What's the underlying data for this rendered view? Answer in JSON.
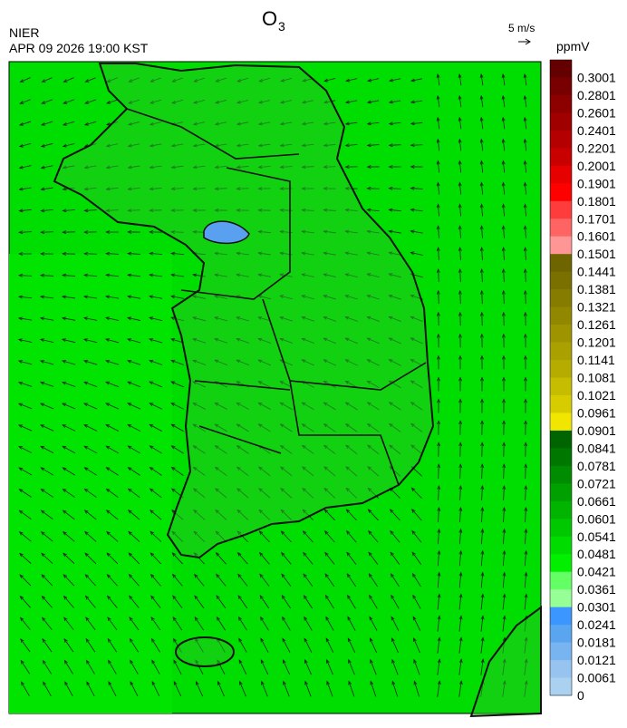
{
  "header": {
    "title": "O",
    "title_subscript": "3",
    "agency": "NIER",
    "timestamp": "APR 09 2026 19:00 KST",
    "wind_scale": "5 m/s"
  },
  "colorbar": {
    "unit": "ppmV",
    "labels": [
      "0.3001",
      "0.2801",
      "0.2601",
      "0.2401",
      "0.2201",
      "0.2001",
      "0.1901",
      "0.1801",
      "0.1701",
      "0.1601",
      "0.1501",
      "0.1441",
      "0.1381",
      "0.1321",
      "0.1261",
      "0.1201",
      "0.1141",
      "0.1081",
      "0.1021",
      "0.0961",
      "0.0901",
      "0.0841",
      "0.0781",
      "0.0721",
      "0.0661",
      "0.0601",
      "0.0541",
      "0.0481",
      "0.0421",
      "0.0361",
      "0.0301",
      "0.0241",
      "0.0181",
      "0.0121",
      "0.0061",
      "0"
    ],
    "colors": [
      "#640000",
      "#780000",
      "#8c0000",
      "#a00000",
      "#b40000",
      "#c80000",
      "#e60000",
      "#ff0000",
      "#ff3c3c",
      "#ff6464",
      "#ff9696",
      "#6e6400",
      "#7a7000",
      "#867c00",
      "#928800",
      "#9e9400",
      "#aaa000",
      "#b6ac00",
      "#c6bc00",
      "#d6cc00",
      "#f0e600",
      "#006400",
      "#007800",
      "#008c00",
      "#00a000",
      "#00b400",
      "#00c800",
      "#00dc00",
      "#00f000",
      "#64ff64",
      "#96ff96",
      "#3c96ff",
      "#5aa5f0",
      "#78b4f0",
      "#96c3f0",
      "#aad2f0"
    ]
  }
}
